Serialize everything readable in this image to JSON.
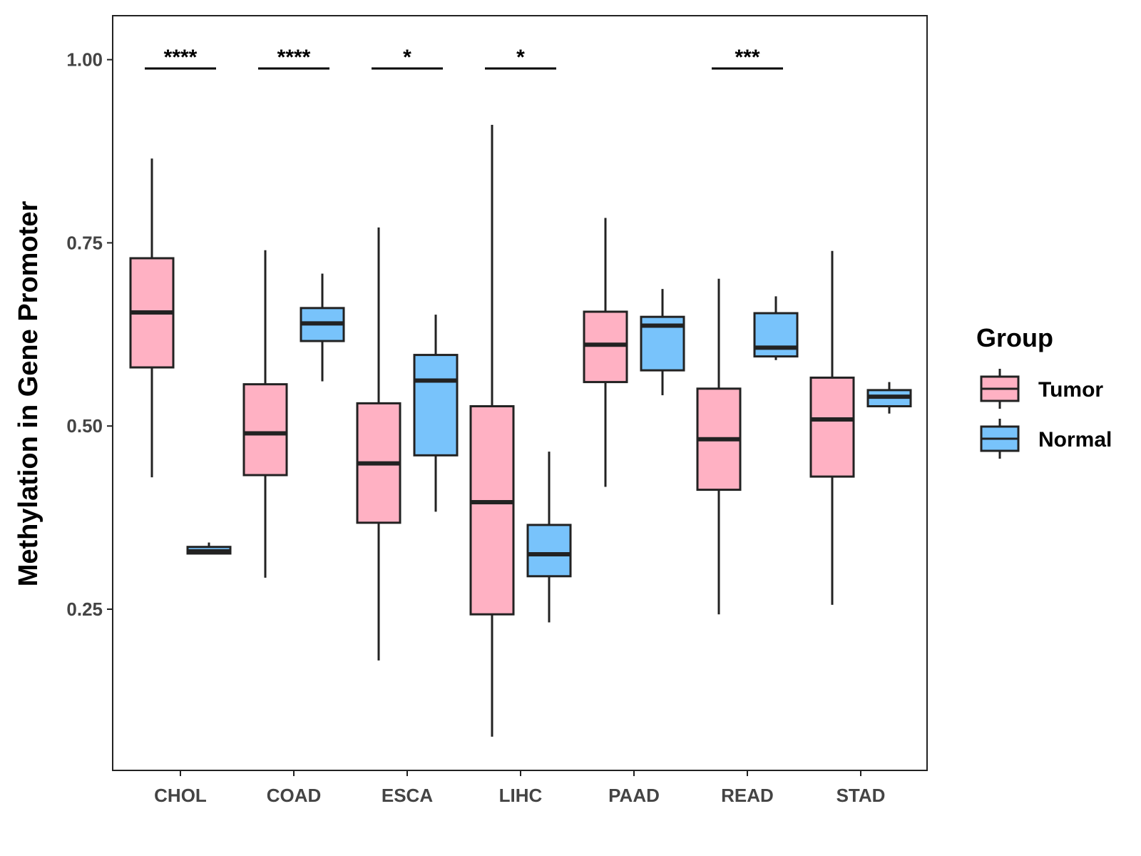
{
  "chart_data": {
    "type": "boxplot",
    "title": "",
    "xlabel": "",
    "ylabel": "Methylation in Gene Promoter",
    "ylim": [
      0.03,
      1.06
    ],
    "yticks": [
      0.25,
      0.5,
      0.75,
      1.0
    ],
    "ytick_labels": [
      "0.25",
      "0.50",
      "0.75",
      "1.00"
    ],
    "categories": [
      "CHOL",
      "COAD",
      "ESCA",
      "LIHC",
      "PAAD",
      "READ",
      "STAD"
    ],
    "legend": {
      "title": "Group",
      "position": "right",
      "entries": [
        {
          "name": "Tumor",
          "color": "#FFB1C3"
        },
        {
          "name": "Normal",
          "color": "#78C3FB"
        }
      ]
    },
    "series": [
      {
        "name": "Tumor",
        "color": "#FFB1C3",
        "boxes": [
          {
            "min": 0.43,
            "q1": 0.58,
            "median": 0.655,
            "q3": 0.729,
            "max": 0.865
          },
          {
            "min": 0.293,
            "q1": 0.433,
            "median": 0.49,
            "q3": 0.557,
            "max": 0.74
          },
          {
            "min": 0.18,
            "q1": 0.368,
            "median": 0.449,
            "q3": 0.531,
            "max": 0.771
          },
          {
            "min": 0.076,
            "q1": 0.243,
            "median": 0.396,
            "q3": 0.527,
            "max": 0.911
          },
          {
            "min": 0.417,
            "q1": 0.56,
            "median": 0.611,
            "q3": 0.656,
            "max": 0.784
          },
          {
            "min": 0.243,
            "q1": 0.413,
            "median": 0.482,
            "q3": 0.551,
            "max": 0.701
          },
          {
            "min": 0.256,
            "q1": 0.431,
            "median": 0.509,
            "q3": 0.566,
            "max": 0.739
          }
        ]
      },
      {
        "name": "Normal",
        "color": "#78C3FB",
        "boxes": [
          {
            "min": 0.326,
            "q1": 0.326,
            "median": 0.329,
            "q3": 0.335,
            "max": 0.341
          },
          {
            "min": 0.561,
            "q1": 0.616,
            "median": 0.64,
            "q3": 0.661,
            "max": 0.708
          },
          {
            "min": 0.383,
            "q1": 0.46,
            "median": 0.562,
            "q3": 0.597,
            "max": 0.652
          },
          {
            "min": 0.232,
            "q1": 0.295,
            "median": 0.325,
            "q3": 0.365,
            "max": 0.465
          },
          {
            "min": 0.542,
            "q1": 0.576,
            "median": 0.637,
            "q3": 0.649,
            "max": 0.687
          },
          {
            "min": 0.59,
            "q1": 0.595,
            "median": 0.607,
            "q3": 0.654,
            "max": 0.677
          },
          {
            "min": 0.517,
            "q1": 0.527,
            "median": 0.54,
            "q3": 0.549,
            "max": 0.56
          }
        ]
      }
    ],
    "annotations": [
      {
        "category": "CHOL",
        "label": "****"
      },
      {
        "category": "COAD",
        "label": "****"
      },
      {
        "category": "ESCA",
        "label": "*"
      },
      {
        "category": "LIHC",
        "label": "*"
      },
      {
        "category": "READ",
        "label": "***"
      }
    ],
    "annotation_level": 0.988
  }
}
